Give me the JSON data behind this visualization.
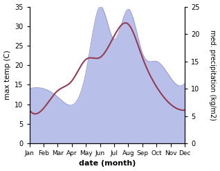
{
  "months": [
    "Jan",
    "Feb",
    "Mar",
    "Apr",
    "May",
    "Jun",
    "Jul",
    "Aug",
    "Sep",
    "Oct",
    "Nov",
    "Dec"
  ],
  "temperature": [
    8.5,
    9.0,
    13.5,
    16.0,
    21.5,
    22.0,
    27.5,
    30.5,
    22.0,
    14.5,
    10.0,
    8.5
  ],
  "precipitation": [
    10.0,
    10.0,
    8.5,
    7.0,
    13.0,
    25.0,
    19.0,
    24.5,
    16.5,
    15.0,
    12.0,
    11.0
  ],
  "temp_color": "#943d55",
  "precip_fill_color": "#b8bfe8",
  "precip_edge_color": "#9aa0d8",
  "temp_ylim": [
    0,
    35
  ],
  "precip_ylim": [
    0,
    25
  ],
  "temp_yticks": [
    0,
    5,
    10,
    15,
    20,
    25,
    30,
    35
  ],
  "precip_yticks": [
    0,
    5,
    10,
    15,
    20,
    25
  ],
  "xlabel": "date (month)",
  "ylabel_left": "max temp (C)",
  "ylabel_right": "med. precipitation (kg/m2)",
  "background_color": "#ffffff"
}
